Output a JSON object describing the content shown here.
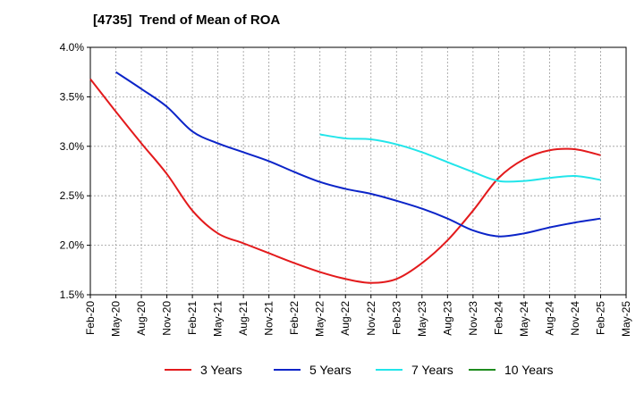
{
  "chart_data": {
    "type": "line",
    "title": "[4735]  Trend of Mean of ROA",
    "xlabel": "",
    "ylabel": "",
    "x": [
      "Feb-20",
      "May-20",
      "Aug-20",
      "Nov-20",
      "Feb-21",
      "May-21",
      "Aug-21",
      "Nov-21",
      "Feb-22",
      "May-22",
      "Aug-22",
      "Nov-22",
      "Feb-23",
      "May-23",
      "Aug-23",
      "Nov-23",
      "Feb-24",
      "May-24",
      "Aug-24",
      "Nov-24",
      "Feb-25",
      "May-25"
    ],
    "ylim": [
      1.5,
      4.0
    ],
    "y_ticks": [
      "1.5%",
      "2.0%",
      "2.5%",
      "3.0%",
      "3.5%",
      "4.0%"
    ],
    "y_tick_values": [
      1.5,
      2.0,
      2.5,
      3.0,
      3.5,
      4.0
    ],
    "grid": true,
    "legend_position": "bottom",
    "series": [
      {
        "name": "3 Years",
        "color": "#e31a1c",
        "values": [
          3.68,
          3.35,
          3.03,
          2.72,
          2.35,
          2.12,
          2.02,
          1.92,
          1.82,
          1.73,
          1.66,
          1.62,
          1.66,
          1.82,
          2.05,
          2.35,
          2.68,
          2.87,
          2.96,
          2.97,
          2.91,
          null
        ]
      },
      {
        "name": "5 Years",
        "color": "#0b24c8",
        "values": [
          null,
          3.75,
          3.58,
          3.4,
          3.15,
          3.03,
          2.94,
          2.85,
          2.74,
          2.64,
          2.57,
          2.52,
          2.45,
          2.37,
          2.27,
          2.15,
          2.09,
          2.12,
          2.18,
          2.23,
          2.27,
          null
        ]
      },
      {
        "name": "7 Years",
        "color": "#22e5ea",
        "values": [
          null,
          null,
          null,
          null,
          null,
          null,
          null,
          null,
          null,
          3.12,
          3.08,
          3.07,
          3.02,
          2.94,
          2.84,
          2.74,
          2.65,
          2.65,
          2.68,
          2.7,
          2.66,
          null
        ]
      },
      {
        "name": "10 Years",
        "color": "#1e8c1e",
        "values": [
          null,
          null,
          null,
          null,
          null,
          null,
          null,
          null,
          null,
          null,
          null,
          null,
          null,
          null,
          null,
          null,
          null,
          null,
          null,
          null,
          null,
          null
        ]
      }
    ]
  }
}
